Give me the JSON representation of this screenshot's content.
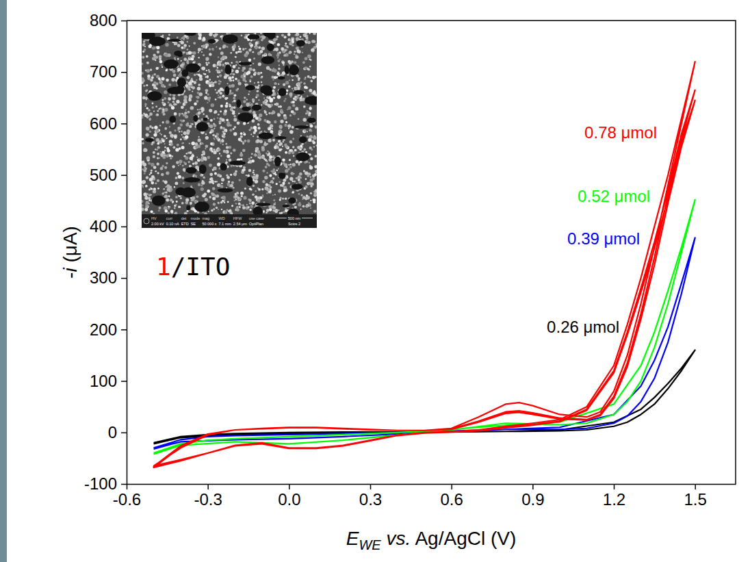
{
  "chart_data": {
    "type": "line",
    "x_label": "EWE vs. Ag/AgCl (V)",
    "y_label": "-i (μA)",
    "xlim": [
      -0.6,
      1.65
    ],
    "ylim": [
      -100,
      800
    ],
    "xticks": [
      -0.6,
      -0.3,
      {
        "value": 0,
        "label": "0.0"
      },
      0.3,
      0.6,
      0.9,
      1.2,
      1.5
    ],
    "yticks": [
      -100,
      0,
      100,
      200,
      300,
      400,
      500,
      600,
      700,
      800
    ],
    "grid": false,
    "annotations": [
      "1/ITO"
    ],
    "inset": {
      "info_labels": [
        "HV",
        "curr",
        "det",
        "mode",
        "mag",
        "WD",
        "HFW",
        "use case"
      ],
      "info_values": [
        "2.00 kV",
        "0.10 nA",
        "ETD",
        "SE",
        "50 000 x",
        "7.1 mm",
        "2.54 μm",
        "OptiPlan"
      ],
      "scale_bar": "500 nm",
      "instrument": "Scios 2"
    },
    "series": [
      {
        "name": "0.78 μmol",
        "color": "#ff0000",
        "x": [
          -0.5,
          -0.4,
          -0.3,
          -0.2,
          -0.1,
          0.0,
          0.1,
          0.2,
          0.3,
          0.4,
          0.5,
          0.6,
          0.7,
          0.8,
          0.85,
          0.9,
          1.0,
          1.1,
          1.15,
          1.2,
          1.25,
          1.3,
          1.35,
          1.4,
          1.45,
          1.5,
          1.45,
          1.4,
          1.35,
          1.3,
          1.25,
          1.2,
          1.1,
          1.0,
          0.9,
          0.8,
          0.7,
          0.6,
          0.5,
          0.4,
          0.3,
          0.2,
          0.1,
          0.0,
          -0.1,
          -0.2,
          -0.3,
          -0.4,
          -0.5,
          -0.4,
          -0.3,
          -0.2,
          -0.1,
          0.0,
          0.1,
          0.2,
          0.3,
          0.4,
          0.5,
          0.6,
          0.7,
          0.8,
          0.85,
          0.9,
          1.0,
          1.1,
          1.15,
          1.2,
          1.25,
          1.3,
          1.35,
          1.4,
          1.45,
          1.5,
          1.45,
          1.4,
          1.35,
          1.3,
          1.25,
          1.2,
          1.1,
          1.0,
          0.9,
          0.8,
          0.7,
          0.6,
          0.5,
          0.4,
          0.3,
          0.2,
          0.1,
          0.0,
          -0.1,
          -0.2,
          -0.3,
          -0.4,
          -0.5,
          -0.4,
          -0.3,
          -0.2,
          -0.1,
          0.0,
          0.1,
          0.2,
          0.3,
          0.4,
          0.5,
          0.6,
          0.7,
          0.8,
          0.85,
          0.9,
          1.0,
          1.1,
          1.15,
          1.2,
          1.25,
          1.3,
          1.35,
          1.4,
          1.45,
          1.5,
          1.45,
          1.4,
          1.35,
          1.3,
          1.25,
          1.2,
          1.1,
          1.0,
          0.9,
          0.8,
          0.7,
          0.6,
          0.5,
          0.4,
          0.3,
          0.2,
          0.1,
          0.0,
          -0.1,
          -0.2,
          -0.3,
          -0.4,
          -0.5
        ],
        "values": [
          -65,
          -30,
          -5,
          5,
          8,
          10,
          10,
          8,
          6,
          4,
          4,
          8,
          30,
          55,
          58,
          52,
          35,
          30,
          40,
          80,
          150,
          250,
          360,
          480,
          600,
          720,
          610,
          500,
          400,
          300,
          210,
          130,
          50,
          25,
          18,
          12,
          5,
          2,
          0,
          -5,
          -15,
          -25,
          -30,
          -30,
          -20,
          -25,
          -40,
          -55,
          -68,
          -28,
          -4,
          5,
          7,
          9,
          9,
          7,
          5,
          4,
          4,
          7,
          22,
          40,
          42,
          38,
          28,
          25,
          35,
          70,
          135,
          230,
          340,
          460,
          570,
          665,
          580,
          470,
          370,
          280,
          195,
          120,
          45,
          22,
          15,
          10,
          4,
          1,
          -1,
          -6,
          -16,
          -26,
          -31,
          -31,
          -22,
          -26,
          -40,
          -54,
          -66,
          -26,
          -3,
          5,
          7,
          9,
          9,
          7,
          5,
          4,
          4,
          6,
          20,
          37,
          39,
          35,
          26,
          24,
          33,
          66,
          128,
          220,
          325,
          445,
          555,
          645,
          565,
          455,
          358,
          272,
          190,
          116,
          43,
          21,
          14,
          9,
          3,
          1,
          -1,
          -6,
          -16,
          -26,
          -31,
          -31,
          -22,
          -26,
          -40,
          -53,
          -65
        ]
      },
      {
        "name": "0.52 μmol",
        "color": "#00ff00",
        "x": [
          -0.5,
          -0.4,
          -0.3,
          -0.2,
          -0.1,
          0.0,
          0.2,
          0.4,
          0.6,
          0.8,
          1.0,
          1.1,
          1.2,
          1.25,
          1.3,
          1.35,
          1.4,
          1.45,
          1.5,
          1.45,
          1.4,
          1.35,
          1.3,
          1.2,
          1.0,
          0.8,
          0.6,
          0.4,
          0.2,
          0.0,
          -0.2,
          -0.4,
          -0.5
        ],
        "values": [
          -40,
          -22,
          -15,
          -12,
          -10,
          -8,
          -4,
          0,
          5,
          18,
          15,
          18,
          35,
          60,
          100,
          165,
          250,
          350,
          452,
          360,
          275,
          195,
          130,
          55,
          20,
          14,
          6,
          -5,
          -15,
          -22,
          -18,
          -25,
          -42
        ]
      },
      {
        "name": "0.39 μmol",
        "color": "#0000ff",
        "x": [
          -0.5,
          -0.4,
          -0.3,
          -0.2,
          -0.1,
          0.0,
          0.2,
          0.4,
          0.6,
          0.8,
          1.0,
          1.1,
          1.2,
          1.25,
          1.3,
          1.35,
          1.4,
          1.45,
          1.5,
          1.45,
          1.4,
          1.35,
          1.3,
          1.2,
          1.0,
          0.8,
          0.6,
          0.4,
          0.2,
          0.0,
          -0.2,
          -0.4,
          -0.5
        ],
        "values": [
          -30,
          -14,
          -8,
          -6,
          -5,
          -4,
          -2,
          0,
          3,
          6,
          6,
          8,
          18,
          32,
          60,
          105,
          175,
          270,
          378,
          290,
          205,
          140,
          90,
          35,
          10,
          6,
          2,
          -3,
          -8,
          -12,
          -14,
          -18,
          -32
        ]
      },
      {
        "name": "0.26 μmol",
        "color": "#000000",
        "x": [
          -0.5,
          -0.4,
          -0.3,
          -0.2,
          -0.1,
          0.0,
          0.2,
          0.4,
          0.6,
          0.8,
          1.0,
          1.1,
          1.2,
          1.25,
          1.3,
          1.35,
          1.4,
          1.45,
          1.5,
          1.45,
          1.4,
          1.35,
          1.3,
          1.2,
          1.0,
          0.8,
          0.6,
          0.4,
          0.2,
          0.0,
          -0.2,
          -0.4,
          -0.5
        ],
        "values": [
          -20,
          -8,
          -4,
          -2,
          -1,
          0,
          1,
          1,
          2,
          2,
          3,
          5,
          12,
          20,
          35,
          55,
          85,
          120,
          160,
          125,
          95,
          68,
          45,
          20,
          5,
          2,
          1,
          0,
          -1,
          -2,
          -4,
          -10,
          -22
        ]
      }
    ]
  }
}
